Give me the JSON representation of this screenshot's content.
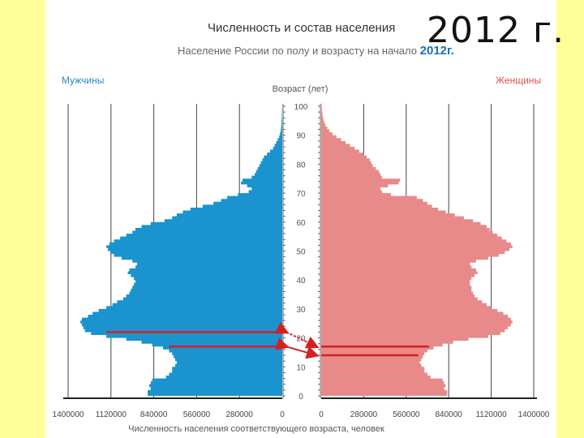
{
  "slide": {
    "year_label": "2012 г."
  },
  "chart_data": {
    "type": "bar",
    "orientation": "horizontal-pyramid",
    "title": "Численность и состав населения",
    "subtitle_text": "Население России по полу и возрасту на начало",
    "subtitle_year": "2012г.",
    "ylabel": "Возраст (лет)",
    "xlabel": "Численность населения соответствующего возраста, человек",
    "legend": {
      "left": "Мужчины",
      "right": "Женщины"
    },
    "age_ticks": [
      "0",
      "10",
      "20",
      "30",
      "40",
      "50",
      "60",
      "70",
      "80",
      "90",
      "100"
    ],
    "x_ticks_left": [
      "1400000",
      "1120000",
      "840000",
      "560000",
      "280000",
      "0"
    ],
    "x_ticks_right": [
      "0",
      "280000",
      "560000",
      "840000",
      "1120000",
      "1400000"
    ],
    "xlim": [
      0,
      1400000
    ],
    "ylim": [
      0,
      100
    ],
    "grid": true,
    "colors": {
      "male": "#1a93cf",
      "female": "#e88a8a",
      "arrows": "#d62020",
      "axis": "#333333",
      "grid": "#444444"
    },
    "male_x_points": [
      [
        0,
        880000
      ],
      [
        1,
        880000
      ],
      [
        2,
        860000
      ],
      [
        3,
        870000
      ],
      [
        4,
        860000
      ],
      [
        5,
        850000
      ],
      [
        6,
        760000
      ],
      [
        7,
        740000
      ],
      [
        8,
        720000
      ],
      [
        9,
        720000
      ],
      [
        10,
        700000
      ],
      [
        11,
        690000
      ],
      [
        12,
        700000
      ],
      [
        13,
        710000
      ],
      [
        14,
        720000
      ],
      [
        15,
        740000
      ],
      [
        16,
        780000
      ],
      [
        17,
        850000
      ],
      [
        18,
        920000
      ],
      [
        19,
        1020000
      ],
      [
        20,
        1150000
      ],
      [
        21,
        1250000
      ],
      [
        22,
        1290000
      ],
      [
        23,
        1300000
      ],
      [
        24,
        1310000
      ],
      [
        25,
        1320000
      ],
      [
        26,
        1310000
      ],
      [
        27,
        1270000
      ],
      [
        28,
        1240000
      ],
      [
        29,
        1200000
      ],
      [
        30,
        1150000
      ],
      [
        31,
        1110000
      ],
      [
        32,
        1080000
      ],
      [
        33,
        1040000
      ],
      [
        34,
        1020000
      ],
      [
        35,
        1000000
      ],
      [
        36,
        990000
      ],
      [
        37,
        980000
      ],
      [
        38,
        970000
      ],
      [
        39,
        960000
      ],
      [
        40,
        970000
      ],
      [
        41,
        990000
      ],
      [
        42,
        1010000
      ],
      [
        43,
        1000000
      ],
      [
        44,
        960000
      ],
      [
        45,
        950000
      ],
      [
        46,
        980000
      ],
      [
        47,
        1050000
      ],
      [
        48,
        1100000
      ],
      [
        49,
        1120000
      ],
      [
        50,
        1140000
      ],
      [
        51,
        1150000
      ],
      [
        52,
        1130000
      ],
      [
        53,
        1100000
      ],
      [
        54,
        1060000
      ],
      [
        55,
        1020000
      ],
      [
        56,
        980000
      ],
      [
        57,
        960000
      ],
      [
        58,
        920000
      ],
      [
        59,
        860000
      ],
      [
        60,
        770000
      ],
      [
        61,
        720000
      ],
      [
        62,
        690000
      ],
      [
        63,
        650000
      ],
      [
        64,
        600000
      ],
      [
        65,
        520000
      ],
      [
        66,
        450000
      ],
      [
        67,
        400000
      ],
      [
        68,
        360000
      ],
      [
        69,
        290000
      ],
      [
        70,
        220000
      ],
      [
        71,
        200000
      ],
      [
        72,
        230000
      ],
      [
        73,
        270000
      ],
      [
        74,
        260000
      ],
      [
        75,
        200000
      ],
      [
        76,
        180000
      ],
      [
        77,
        170000
      ],
      [
        78,
        160000
      ],
      [
        79,
        150000
      ],
      [
        80,
        140000
      ],
      [
        81,
        130000
      ],
      [
        82,
        120000
      ],
      [
        83,
        100000
      ],
      [
        84,
        80000
      ],
      [
        85,
        60000
      ],
      [
        86,
        50000
      ],
      [
        87,
        40000
      ],
      [
        88,
        30000
      ],
      [
        89,
        20000
      ],
      [
        90,
        15000
      ],
      [
        91,
        10000
      ],
      [
        92,
        8000
      ],
      [
        93,
        6000
      ],
      [
        94,
        5000
      ],
      [
        95,
        4000
      ],
      [
        96,
        3000
      ],
      [
        97,
        2000
      ],
      [
        98,
        2000
      ],
      [
        99,
        1000
      ],
      [
        100,
        1000
      ]
    ],
    "female_x_points": [
      [
        0,
        830000
      ],
      [
        1,
        830000
      ],
      [
        2,
        810000
      ],
      [
        3,
        820000
      ],
      [
        4,
        810000
      ],
      [
        5,
        800000
      ],
      [
        6,
        720000
      ],
      [
        7,
        700000
      ],
      [
        8,
        680000
      ],
      [
        9,
        680000
      ],
      [
        10,
        660000
      ],
      [
        11,
        650000
      ],
      [
        12,
        660000
      ],
      [
        13,
        670000
      ],
      [
        14,
        680000
      ],
      [
        15,
        700000
      ],
      [
        16,
        740000
      ],
      [
        17,
        800000
      ],
      [
        18,
        870000
      ],
      [
        19,
        970000
      ],
      [
        20,
        1100000
      ],
      [
        21,
        1180000
      ],
      [
        22,
        1210000
      ],
      [
        23,
        1230000
      ],
      [
        24,
        1250000
      ],
      [
        25,
        1260000
      ],
      [
        26,
        1250000
      ],
      [
        27,
        1230000
      ],
      [
        28,
        1200000
      ],
      [
        29,
        1160000
      ],
      [
        30,
        1120000
      ],
      [
        31,
        1090000
      ],
      [
        32,
        1060000
      ],
      [
        33,
        1030000
      ],
      [
        34,
        1010000
      ],
      [
        35,
        1000000
      ],
      [
        36,
        990000
      ],
      [
        37,
        990000
      ],
      [
        38,
        980000
      ],
      [
        39,
        980000
      ],
      [
        40,
        990000
      ],
      [
        41,
        1010000
      ],
      [
        42,
        1030000
      ],
      [
        43,
        1020000
      ],
      [
        44,
        990000
      ],
      [
        45,
        980000
      ],
      [
        46,
        1020000
      ],
      [
        47,
        1100000
      ],
      [
        48,
        1170000
      ],
      [
        49,
        1210000
      ],
      [
        50,
        1240000
      ],
      [
        51,
        1260000
      ],
      [
        52,
        1250000
      ],
      [
        53,
        1220000
      ],
      [
        54,
        1190000
      ],
      [
        55,
        1160000
      ],
      [
        56,
        1130000
      ],
      [
        57,
        1110000
      ],
      [
        58,
        1090000
      ],
      [
        59,
        1050000
      ],
      [
        60,
        1000000
      ],
      [
        61,
        940000
      ],
      [
        62,
        880000
      ],
      [
        63,
        820000
      ],
      [
        64,
        770000
      ],
      [
        65,
        730000
      ],
      [
        66,
        700000
      ],
      [
        67,
        670000
      ],
      [
        68,
        630000
      ],
      [
        69,
        460000
      ],
      [
        70,
        400000
      ],
      [
        71,
        390000
      ],
      [
        72,
        440000
      ],
      [
        73,
        510000
      ],
      [
        74,
        520000
      ],
      [
        75,
        400000
      ],
      [
        76,
        390000
      ],
      [
        77,
        380000
      ],
      [
        78,
        360000
      ],
      [
        79,
        340000
      ],
      [
        80,
        330000
      ],
      [
        81,
        320000
      ],
      [
        82,
        300000
      ],
      [
        83,
        280000
      ],
      [
        84,
        250000
      ],
      [
        85,
        220000
      ],
      [
        86,
        190000
      ],
      [
        87,
        160000
      ],
      [
        88,
        130000
      ],
      [
        89,
        100000
      ],
      [
        90,
        75000
      ],
      [
        91,
        55000
      ],
      [
        92,
        40000
      ],
      [
        93,
        28000
      ],
      [
        94,
        20000
      ],
      [
        95,
        15000
      ],
      [
        96,
        11000
      ],
      [
        97,
        8000
      ],
      [
        98,
        6000
      ],
      [
        99,
        4000
      ],
      [
        100,
        3000
      ]
    ],
    "annotation_arrows": [
      {
        "side": "male",
        "age": 22,
        "value": 1150000
      },
      {
        "side": "male",
        "age": 17,
        "value": 740000
      },
      {
        "side": "female",
        "age": 17,
        "value": 710000
      },
      {
        "side": "female",
        "age": 14,
        "value": 640000
      }
    ]
  }
}
